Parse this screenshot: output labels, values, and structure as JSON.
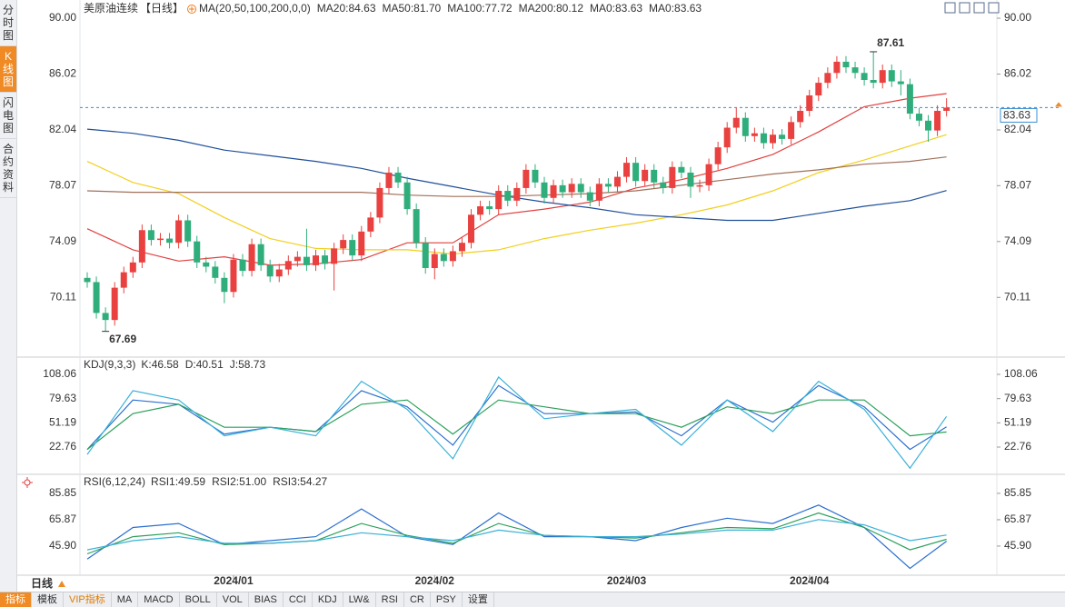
{
  "sidebar": [
    "分时图",
    "K线图",
    "闪电图",
    "合约资料"
  ],
  "sidebar_active": 1,
  "period_button": "日线",
  "toolbar": [
    "指标",
    "模板",
    "VIP指标",
    "MA",
    "MACD",
    "BOLL",
    "VOL",
    "BIAS",
    "CCI",
    "KDJ",
    "LW&",
    "RSI",
    "CR",
    "PSY",
    "设置"
  ],
  "toolbar_active": 0,
  "chart_data": [
    {
      "type": "candlestick",
      "title": "美原油连续",
      "period": "【日线】",
      "indicator": "MA(20,50,100,200,0,0)",
      "up_color": "#e8413f",
      "down_color": "#2fae7c",
      "last_color": "#3a8fd0",
      "candles": [
        [
          71.5,
          71.9,
          70.8,
          71.2
        ],
        [
          71.2,
          71.6,
          68.6,
          69.0
        ],
        [
          69.0,
          69.4,
          67.69,
          68.5
        ],
        [
          68.5,
          71.2,
          68.1,
          70.8
        ],
        [
          70.8,
          72.3,
          70.4,
          71.9
        ],
        [
          71.9,
          73.0,
          71.5,
          72.6
        ],
        [
          72.6,
          75.3,
          72.2,
          74.9
        ],
        [
          74.9,
          75.3,
          73.8,
          74.2
        ],
        [
          74.2,
          74.7,
          73.8,
          74.3
        ],
        [
          74.3,
          74.7,
          73.6,
          74.0
        ],
        [
          74.0,
          76.0,
          73.6,
          75.6
        ],
        [
          75.6,
          76.0,
          73.7,
          74.1
        ],
        [
          74.1,
          74.5,
          72.2,
          72.6
        ],
        [
          72.6,
          73.0,
          71.9,
          72.3
        ],
        [
          72.3,
          72.7,
          71.1,
          71.5
        ],
        [
          71.5,
          71.9,
          69.7,
          70.5
        ],
        [
          70.5,
          73.2,
          70.1,
          72.8
        ],
        [
          72.8,
          73.2,
          71.6,
          72.0
        ],
        [
          72.0,
          74.3,
          71.6,
          73.9
        ],
        [
          73.9,
          74.3,
          72.0,
          72.4
        ],
        [
          72.4,
          72.8,
          71.2,
          71.6
        ],
        [
          71.6,
          72.5,
          71.2,
          72.1
        ],
        [
          72.1,
          73.1,
          71.7,
          72.7
        ],
        [
          72.7,
          73.4,
          72.3,
          73.0
        ],
        [
          73.0,
          75.0,
          72.0,
          72.4
        ],
        [
          72.4,
          73.5,
          72.0,
          73.1
        ],
        [
          73.1,
          73.5,
          72.1,
          72.5
        ],
        [
          72.5,
          74.0,
          70.6,
          73.6
        ],
        [
          73.6,
          74.6,
          73.2,
          74.2
        ],
        [
          74.2,
          74.6,
          72.7,
          73.1
        ],
        [
          73.1,
          75.2,
          72.7,
          74.8
        ],
        [
          74.8,
          76.2,
          74.4,
          75.8
        ],
        [
          75.8,
          78.3,
          75.4,
          77.9
        ],
        [
          77.9,
          79.4,
          77.5,
          79.0
        ],
        [
          79.0,
          79.4,
          77.9,
          78.3
        ],
        [
          78.3,
          78.7,
          76.0,
          76.4
        ],
        [
          76.4,
          76.8,
          73.6,
          74.0
        ],
        [
          74.0,
          74.4,
          71.8,
          72.2
        ],
        [
          72.2,
          73.6,
          71.4,
          73.2
        ],
        [
          73.2,
          73.6,
          72.3,
          72.7
        ],
        [
          72.7,
          73.8,
          72.3,
          73.4
        ],
        [
          73.4,
          74.4,
          73.0,
          74.0
        ],
        [
          74.0,
          76.4,
          73.6,
          76.0
        ],
        [
          76.0,
          77.0,
          75.6,
          76.6
        ],
        [
          76.6,
          77.0,
          76.0,
          76.4
        ],
        [
          76.4,
          78.1,
          76.0,
          77.7
        ],
        [
          77.7,
          78.1,
          76.6,
          77.0
        ],
        [
          77.0,
          78.3,
          76.6,
          77.9
        ],
        [
          77.9,
          79.6,
          77.5,
          79.2
        ],
        [
          79.2,
          79.6,
          77.9,
          78.3
        ],
        [
          78.3,
          78.7,
          76.8,
          77.2
        ],
        [
          77.2,
          78.5,
          76.8,
          78.1
        ],
        [
          78.1,
          78.5,
          77.2,
          77.6
        ],
        [
          77.6,
          78.6,
          77.2,
          78.2
        ],
        [
          78.2,
          78.6,
          77.2,
          77.6
        ],
        [
          77.6,
          78.0,
          76.6,
          77.0
        ],
        [
          77.0,
          78.6,
          76.6,
          78.2
        ],
        [
          78.2,
          78.6,
          77.6,
          78.0
        ],
        [
          78.0,
          79.1,
          77.6,
          78.7
        ],
        [
          78.7,
          80.1,
          78.3,
          79.7
        ],
        [
          79.7,
          80.1,
          78.0,
          78.4
        ],
        [
          78.4,
          79.6,
          78.0,
          79.2
        ],
        [
          79.2,
          79.6,
          77.9,
          78.3
        ],
        [
          78.3,
          78.7,
          77.5,
          77.9
        ],
        [
          77.9,
          79.8,
          77.5,
          79.4
        ],
        [
          79.4,
          79.8,
          78.6,
          79.0
        ],
        [
          79.0,
          79.4,
          77.2,
          78.0
        ],
        [
          78.0,
          78.5,
          77.6,
          78.1
        ],
        [
          78.1,
          80.0,
          77.7,
          79.6
        ],
        [
          79.6,
          81.2,
          79.2,
          80.8
        ],
        [
          80.8,
          82.6,
          80.4,
          82.2
        ],
        [
          82.2,
          83.6,
          81.8,
          82.9
        ],
        [
          82.9,
          83.3,
          81.2,
          81.6
        ],
        [
          81.6,
          82.2,
          81.2,
          81.8
        ],
        [
          81.8,
          82.2,
          80.7,
          81.1
        ],
        [
          81.1,
          82.1,
          80.7,
          81.7
        ],
        [
          81.7,
          82.1,
          81.0,
          81.4
        ],
        [
          81.4,
          83.0,
          81.0,
          82.6
        ],
        [
          82.6,
          83.8,
          82.2,
          83.4
        ],
        [
          83.4,
          84.9,
          83.0,
          84.5
        ],
        [
          84.5,
          85.8,
          84.1,
          85.4
        ],
        [
          85.4,
          86.5,
          85.0,
          86.1
        ],
        [
          86.1,
          87.3,
          85.7,
          86.9
        ],
        [
          86.9,
          87.3,
          86.1,
          86.5
        ],
        [
          86.5,
          86.9,
          85.7,
          86.1
        ],
        [
          86.1,
          86.5,
          85.2,
          85.6
        ],
        [
          85.6,
          87.61,
          85.0,
          85.4
        ],
        [
          85.4,
          86.7,
          85.0,
          86.3
        ],
        [
          86.3,
          86.7,
          85.1,
          85.5
        ],
        [
          85.5,
          86.3,
          84.5,
          85.3
        ],
        [
          85.3,
          85.7,
          82.8,
          83.2
        ],
        [
          83.2,
          83.6,
          82.3,
          82.7
        ],
        [
          82.7,
          83.1,
          81.2,
          82.0
        ],
        [
          82.0,
          83.8,
          81.6,
          83.4
        ],
        [
          83.4,
          84.3,
          83.0,
          83.63
        ]
      ],
      "x": [
        0,
        5,
        10,
        15,
        20,
        25,
        30,
        35,
        40,
        45,
        50,
        55,
        60,
        65,
        70,
        75,
        80,
        85,
        90,
        94
      ],
      "series": [
        {
          "name": "MA20:84.63",
          "color": "#e0403e",
          "values": [
            75.0,
            73.5,
            72.7,
            73.0,
            72.4,
            72.5,
            72.8,
            74.0,
            74.0,
            76.0,
            76.4,
            76.9,
            77.9,
            78.5,
            79.3,
            80.3,
            81.9,
            83.7,
            84.3,
            84.63
          ]
        },
        {
          "name": "MA50:81.70",
          "color": "#f2cf1c",
          "values": [
            79.8,
            78.3,
            77.5,
            75.8,
            74.3,
            73.6,
            73.5,
            73.5,
            73.2,
            73.5,
            74.3,
            74.9,
            75.4,
            76.0,
            76.7,
            77.7,
            79.0,
            79.9,
            80.9,
            81.7
          ]
        },
        {
          "name": "MA100:77.72",
          "color": "#1f4f9a",
          "values": [
            82.1,
            81.8,
            81.3,
            80.6,
            80.2,
            79.8,
            79.3,
            78.6,
            78.0,
            77.4,
            76.9,
            76.5,
            76.0,
            75.8,
            75.6,
            75.6,
            76.1,
            76.6,
            77.0,
            77.72
          ]
        },
        {
          "name": "MA200:80.12",
          "color": "#a0705a",
          "values": [
            77.7,
            77.6,
            77.6,
            77.6,
            77.6,
            77.6,
            77.6,
            77.4,
            77.3,
            77.3,
            77.4,
            77.5,
            77.7,
            78.1,
            78.5,
            78.9,
            79.2,
            79.6,
            79.8,
            80.12
          ]
        }
      ],
      "extra_legend": [
        {
          "name": "MA0:83.63",
          "color": "#4a9be0"
        },
        {
          "name": "MA0:83.63",
          "color": "#46c08a"
        }
      ],
      "xticks": [
        {
          "value": 16,
          "label": "2024/01"
        },
        {
          "value": 38,
          "label": "2024/02"
        },
        {
          "value": 59,
          "label": "2024/03"
        },
        {
          "value": 79,
          "label": "2024/04"
        }
      ],
      "ylim": [
        65.92,
        90.65
      ],
      "yticks": [
        {
          "value": 90,
          "label": "90.00"
        },
        86.02,
        82.04,
        78.07,
        74.09,
        70.11
      ]
    },
    {
      "type": "line",
      "title": "KDJ(9,3,3)",
      "x": [
        0,
        5,
        10,
        15,
        20,
        25,
        30,
        35,
        40,
        45,
        50,
        55,
        60,
        65,
        70,
        75,
        80,
        85,
        90,
        94
      ],
      "series": [
        {
          "name": "K:46.58",
          "color": "#2b6fcf",
          "values": [
            20,
            78,
            73,
            38,
            46,
            41,
            89,
            70,
            25,
            95,
            62,
            62,
            64,
            36,
            78,
            52,
            95,
            70,
            20,
            46.58
          ]
        },
        {
          "name": "D:40.51",
          "color": "#2aa05a",
          "values": [
            20,
            62,
            73,
            46,
            46,
            41,
            73,
            78,
            38,
            78,
            70,
            62,
            62,
            46,
            70,
            62,
            78,
            78,
            36,
            40.51
          ]
        },
        {
          "name": "J:58.73",
          "color": "#3ab0d8",
          "values": [
            14,
            89,
            78,
            36,
            46,
            36,
            100,
            67,
            9,
            105,
            56,
            62,
            67,
            25,
            78,
            41,
            100,
            67,
            -2,
            58.73
          ]
        }
      ],
      "ylim": [
        -7.1,
        126.2
      ],
      "yticks": [
        108.06,
        79.63,
        51.19,
        22.76
      ]
    },
    {
      "type": "line",
      "title": "RSI(6,12,24)",
      "x": [
        0,
        5,
        10,
        15,
        20,
        25,
        30,
        35,
        40,
        45,
        50,
        55,
        60,
        65,
        70,
        75,
        80,
        85,
        90,
        94
      ],
      "series": [
        {
          "name": "RSI1:49.59",
          "color": "#2b6fcf",
          "values": [
            36,
            60,
            63,
            47,
            50,
            53,
            74,
            53,
            47,
            71,
            53,
            53,
            50,
            60,
            67,
            63,
            77,
            60,
            29,
            49.59
          ]
        },
        {
          "name": "RSI2:51.00",
          "color": "#2aa05a",
          "values": [
            40,
            53,
            56,
            47,
            48,
            50,
            63,
            54,
            48,
            63,
            54,
            53,
            52,
            56,
            60,
            59,
            71,
            60,
            43,
            51.0
          ]
        },
        {
          "name": "RSI3:54.27",
          "color": "#3ab0d8",
          "values": [
            43,
            50,
            53,
            48,
            48,
            50,
            56,
            53,
            50,
            58,
            54,
            53,
            53,
            55,
            58,
            58,
            66,
            62,
            50,
            54.27
          ]
        }
      ],
      "ylim": [
        24.5,
        98.9
      ],
      "yticks": [
        85.85,
        65.87,
        {
          "value": 45.9,
          "label": "45.90"
        }
      ]
    }
  ]
}
